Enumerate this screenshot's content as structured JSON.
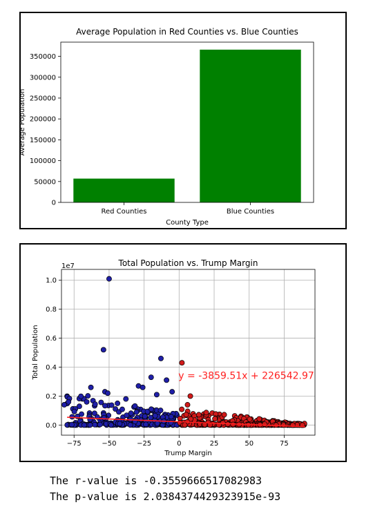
{
  "chart_data": [
    {
      "type": "bar",
      "title": "Average Population in Red Counties vs. Blue Counties",
      "xlabel": "County Type",
      "ylabel": "Average Population",
      "categories": [
        "Red Counties",
        "Blue Counties"
      ],
      "values": [
        57000,
        366000
      ],
      "ylim": [
        0,
        384000
      ],
      "yticks": [
        0,
        50000,
        100000,
        150000,
        200000,
        250000,
        300000,
        350000
      ],
      "ytick_labels": [
        "0",
        "50000",
        "100000",
        "150000",
        "200000",
        "250000",
        "300000",
        "350000"
      ],
      "bar_color": "#008000",
      "grid": false
    },
    {
      "type": "scatter",
      "title": "Total Population vs. Trump Margin",
      "xlabel": "Trump Margin",
      "ylabel": "Total Population",
      "offset_label": "1e7",
      "xlim": [
        -84,
        97
      ],
      "ylim": [
        -0.7,
        10.75
      ],
      "ylim_units": "population in units of 1e6",
      "xticks": [
        -75,
        -50,
        -25,
        0,
        25,
        50,
        75
      ],
      "xtick_labels": [
        "−75",
        "−50",
        "−25",
        "0",
        "25",
        "50",
        "75"
      ],
      "yticks": [
        0,
        2,
        4,
        6,
        8,
        10
      ],
      "ytick_labels": [
        "0.0",
        "0.2",
        "0.4",
        "0.6",
        "0.8",
        "1.0"
      ],
      "grid": true,
      "colors": {
        "blue": "#1f1fa8",
        "red": "#d11a1a",
        "regression": "#ff2020"
      },
      "regression": {
        "slope": -3859.51,
        "intercept": 226542.97,
        "equation": "y = -3859.51x + 226542.97"
      },
      "outliers": [
        {
          "x": -50,
          "y": 10.1,
          "party": "blue"
        },
        {
          "x": -54,
          "y": 5.2,
          "party": "blue"
        },
        {
          "x": -13,
          "y": 4.6,
          "party": "blue"
        },
        {
          "x": 2,
          "y": 4.3,
          "party": "red"
        },
        {
          "x": -20,
          "y": 3.3,
          "party": "blue"
        },
        {
          "x": -63,
          "y": 2.6,
          "party": "blue"
        },
        {
          "x": -29,
          "y": 2.7,
          "party": "blue"
        },
        {
          "x": -9,
          "y": 3.1,
          "party": "blue"
        },
        {
          "x": -53,
          "y": 2.3,
          "party": "blue"
        },
        {
          "x": -51,
          "y": 2.2,
          "party": "blue"
        },
        {
          "x": -26,
          "y": 2.6,
          "party": "blue"
        },
        {
          "x": 8,
          "y": 2.0,
          "party": "red"
        },
        {
          "x": -16,
          "y": 2.1,
          "party": "blue"
        },
        {
          "x": -79,
          "y": 1.6,
          "party": "blue"
        },
        {
          "x": -66,
          "y": 1.6,
          "party": "blue"
        },
        {
          "x": -5,
          "y": 2.3,
          "party": "blue"
        },
        {
          "x": 6,
          "y": 1.4,
          "party": "red"
        },
        {
          "x": -38,
          "y": 1.8,
          "party": "blue"
        },
        {
          "x": -44,
          "y": 1.5,
          "party": "blue"
        },
        {
          "x": -82,
          "y": 1.4,
          "party": "blue"
        }
      ]
    }
  ],
  "output": {
    "r_line": "The r-value is -0.3559666517082983",
    "p_line": "The p-value is 2.0384374429323915e-93"
  }
}
